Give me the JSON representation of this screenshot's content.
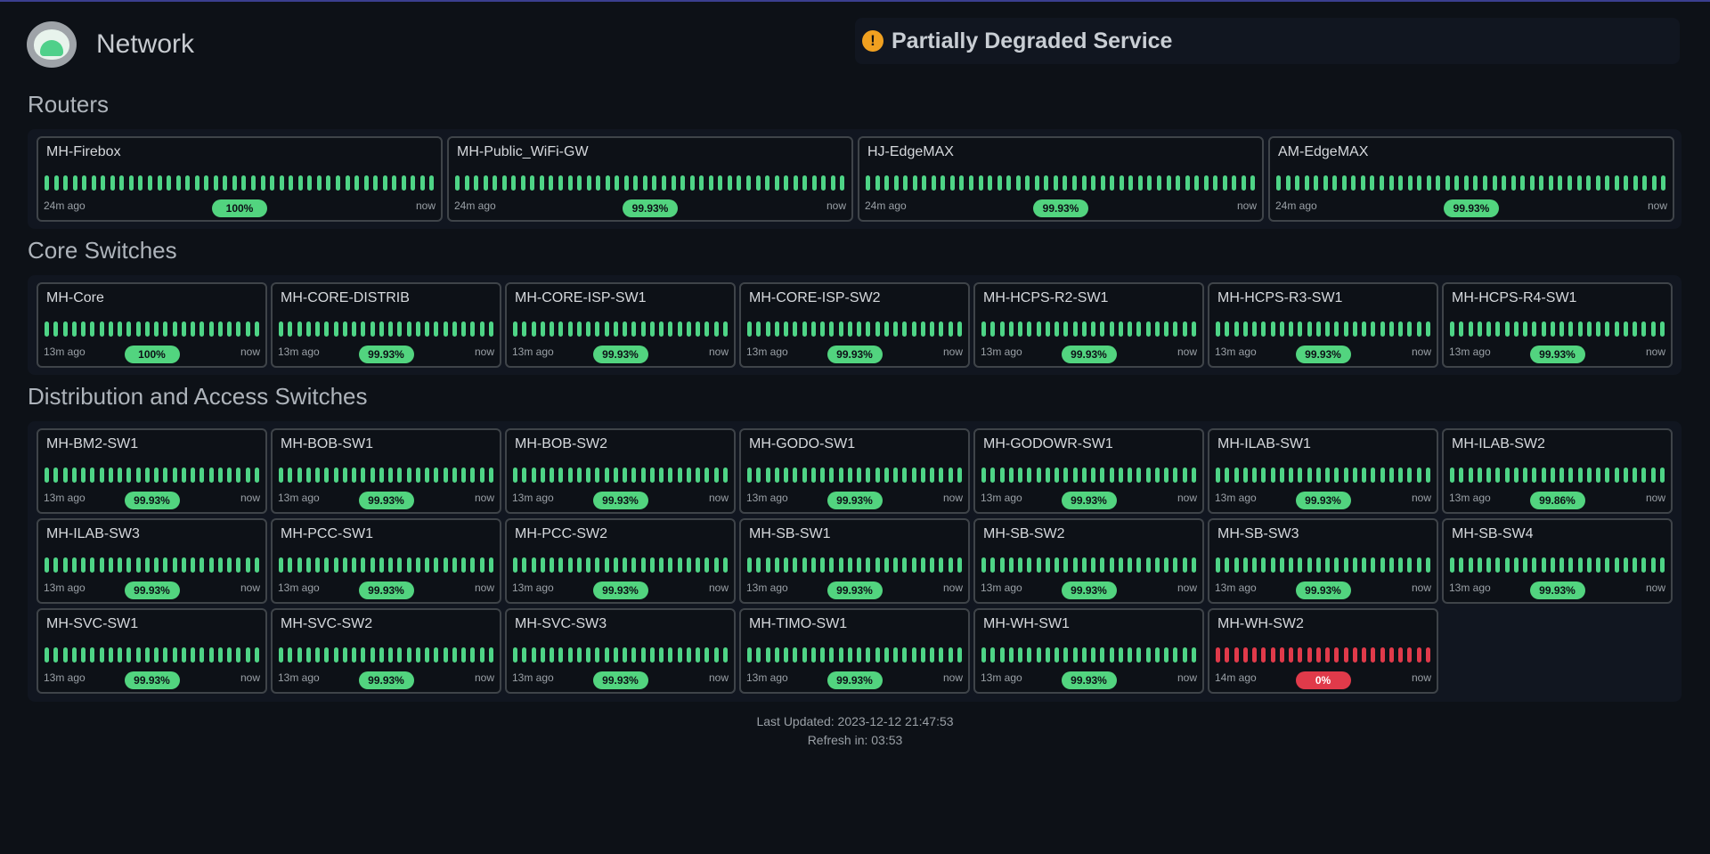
{
  "app": {
    "title": "Network",
    "logo_icon": "monitor-logo"
  },
  "status": {
    "text": "Partially Degraded Service",
    "icon": "exclamation-icon",
    "color": "#f0a020"
  },
  "colors": {
    "up": "#4ed486",
    "down": "#e03a4a",
    "badge_up": "#52d47f"
  },
  "sections": [
    {
      "title": "Routers",
      "columns": 4,
      "bars_per_card": 42,
      "monitors": [
        {
          "name": "MH-Firebox",
          "since": "24m ago",
          "now": "now",
          "uptime": "100%",
          "status": "up"
        },
        {
          "name": "MH-Public_WiFi-GW",
          "since": "24m ago",
          "now": "now",
          "uptime": "99.93%",
          "status": "up"
        },
        {
          "name": "HJ-EdgeMAX",
          "since": "24m ago",
          "now": "now",
          "uptime": "99.93%",
          "status": "up"
        },
        {
          "name": "AM-EdgeMAX",
          "since": "24m ago",
          "now": "now",
          "uptime": "99.93%",
          "status": "up"
        }
      ]
    },
    {
      "title": "Core Switches",
      "columns": 7,
      "bars_per_card": 24,
      "monitors": [
        {
          "name": "MH-Core",
          "since": "13m ago",
          "now": "now",
          "uptime": "100%",
          "status": "up"
        },
        {
          "name": "MH-CORE-DISTRIB",
          "since": "13m ago",
          "now": "now",
          "uptime": "99.93%",
          "status": "up"
        },
        {
          "name": "MH-CORE-ISP-SW1",
          "since": "13m ago",
          "now": "now",
          "uptime": "99.93%",
          "status": "up"
        },
        {
          "name": "MH-CORE-ISP-SW2",
          "since": "13m ago",
          "now": "now",
          "uptime": "99.93%",
          "status": "up"
        },
        {
          "name": "MH-HCPS-R2-SW1",
          "since": "13m ago",
          "now": "now",
          "uptime": "99.93%",
          "status": "up"
        },
        {
          "name": "MH-HCPS-R3-SW1",
          "since": "13m ago",
          "now": "now",
          "uptime": "99.93%",
          "status": "up"
        },
        {
          "name": "MH-HCPS-R4-SW1",
          "since": "13m ago",
          "now": "now",
          "uptime": "99.93%",
          "status": "up"
        }
      ]
    },
    {
      "title": "Distribution and Access Switches",
      "columns": 7,
      "bars_per_card": 24,
      "monitors": [
        {
          "name": "MH-BM2-SW1",
          "since": "13m ago",
          "now": "now",
          "uptime": "99.93%",
          "status": "up"
        },
        {
          "name": "MH-BOB-SW1",
          "since": "13m ago",
          "now": "now",
          "uptime": "99.93%",
          "status": "up"
        },
        {
          "name": "MH-BOB-SW2",
          "since": "13m ago",
          "now": "now",
          "uptime": "99.93%",
          "status": "up"
        },
        {
          "name": "MH-GODO-SW1",
          "since": "13m ago",
          "now": "now",
          "uptime": "99.93%",
          "status": "up"
        },
        {
          "name": "MH-GODOWR-SW1",
          "since": "13m ago",
          "now": "now",
          "uptime": "99.93%",
          "status": "up"
        },
        {
          "name": "MH-ILAB-SW1",
          "since": "13m ago",
          "now": "now",
          "uptime": "99.93%",
          "status": "up"
        },
        {
          "name": "MH-ILAB-SW2",
          "since": "13m ago",
          "now": "now",
          "uptime": "99.86%",
          "status": "up"
        },
        {
          "name": "MH-ILAB-SW3",
          "since": "13m ago",
          "now": "now",
          "uptime": "99.93%",
          "status": "up"
        },
        {
          "name": "MH-PCC-SW1",
          "since": "13m ago",
          "now": "now",
          "uptime": "99.93%",
          "status": "up"
        },
        {
          "name": "MH-PCC-SW2",
          "since": "13m ago",
          "now": "now",
          "uptime": "99.93%",
          "status": "up"
        },
        {
          "name": "MH-SB-SW1",
          "since": "13m ago",
          "now": "now",
          "uptime": "99.93%",
          "status": "up"
        },
        {
          "name": "MH-SB-SW2",
          "since": "13m ago",
          "now": "now",
          "uptime": "99.93%",
          "status": "up"
        },
        {
          "name": "MH-SB-SW3",
          "since": "13m ago",
          "now": "now",
          "uptime": "99.93%",
          "status": "up"
        },
        {
          "name": "MH-SB-SW4",
          "since": "13m ago",
          "now": "now",
          "uptime": "99.93%",
          "status": "up"
        },
        {
          "name": "MH-SVC-SW1",
          "since": "13m ago",
          "now": "now",
          "uptime": "99.93%",
          "status": "up"
        },
        {
          "name": "MH-SVC-SW2",
          "since": "13m ago",
          "now": "now",
          "uptime": "99.93%",
          "status": "up"
        },
        {
          "name": "MH-SVC-SW3",
          "since": "13m ago",
          "now": "now",
          "uptime": "99.93%",
          "status": "up"
        },
        {
          "name": "MH-TIMO-SW1",
          "since": "13m ago",
          "now": "now",
          "uptime": "99.93%",
          "status": "up"
        },
        {
          "name": "MH-WH-SW1",
          "since": "13m ago",
          "now": "now",
          "uptime": "99.93%",
          "status": "up"
        },
        {
          "name": "MH-WH-SW2",
          "since": "14m ago",
          "now": "now",
          "uptime": "0%",
          "status": "down"
        }
      ]
    }
  ],
  "footer": {
    "last_updated": "Last Updated: 2023-12-12 21:47:53",
    "refresh": "Refresh in: 03:53"
  }
}
